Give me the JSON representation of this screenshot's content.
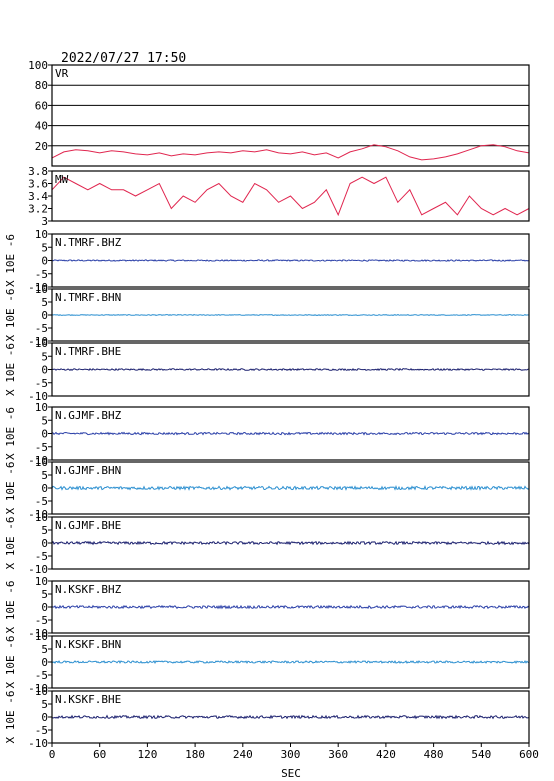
{
  "header": {
    "datetime": "2022/07/27 17:50"
  },
  "chart_data": {
    "type": "line",
    "xlabel": "SEC",
    "xlim": [
      0,
      600
    ],
    "xticks": [
      0,
      60,
      120,
      180,
      240,
      300,
      360,
      420,
      480,
      540,
      600
    ],
    "panels": [
      {
        "label": "VR",
        "ylim": [
          0,
          100
        ],
        "yticks": [
          20,
          40,
          60,
          80,
          100
        ],
        "grid": true,
        "color": "#e0264f",
        "series": {
          "x": [
            0,
            15,
            30,
            45,
            60,
            75,
            90,
            105,
            120,
            135,
            150,
            165,
            180,
            195,
            210,
            225,
            240,
            255,
            270,
            285,
            300,
            315,
            330,
            345,
            360,
            375,
            390,
            405,
            420,
            435,
            450,
            465,
            480,
            495,
            510,
            525,
            540,
            555,
            570,
            585,
            600
          ],
          "y": [
            8,
            14,
            16,
            15,
            13,
            15,
            14,
            12,
            11,
            13,
            10,
            12,
            11,
            13,
            14,
            13,
            15,
            14,
            16,
            13,
            12,
            14,
            11,
            13,
            8,
            14,
            17,
            21,
            19,
            15,
            9,
            6,
            7,
            9,
            12,
            16,
            20,
            21,
            19,
            15,
            13
          ]
        }
      },
      {
        "label": "MW",
        "ylim": [
          3.0,
          3.8
        ],
        "yticks": [
          3.0,
          3.2,
          3.4,
          3.6,
          3.8
        ],
        "grid": false,
        "color": "#e0264f",
        "series": {
          "x": [
            0,
            15,
            30,
            45,
            60,
            75,
            90,
            105,
            120,
            135,
            150,
            165,
            180,
            195,
            210,
            225,
            240,
            255,
            270,
            285,
            300,
            315,
            330,
            345,
            360,
            375,
            390,
            405,
            420,
            435,
            450,
            465,
            480,
            495,
            510,
            525,
            540,
            555,
            570,
            585,
            600
          ],
          "y": [
            3.5,
            3.7,
            3.6,
            3.5,
            3.6,
            3.5,
            3.5,
            3.4,
            3.5,
            3.6,
            3.2,
            3.4,
            3.3,
            3.5,
            3.6,
            3.4,
            3.3,
            3.6,
            3.5,
            3.3,
            3.4,
            3.2,
            3.3,
            3.5,
            3.1,
            3.6,
            3.7,
            3.6,
            3.7,
            3.3,
            3.5,
            3.1,
            3.2,
            3.3,
            3.1,
            3.4,
            3.2,
            3.1,
            3.2,
            3.1,
            3.2
          ]
        }
      },
      {
        "label": "N.TMRF.BHZ",
        "ylabel": "X 10E -6",
        "ylim": [
          -10,
          10
        ],
        "yticks": [
          -10,
          -5,
          0,
          5,
          10
        ],
        "color": "#2a3fa8",
        "baseline": 0,
        "noise": 0.25
      },
      {
        "label": "N.TMRF.BHN",
        "ylabel": "X 10E -6",
        "ylim": [
          -10,
          10
        ],
        "yticks": [
          -10,
          -5,
          0,
          5,
          10
        ],
        "color": "#2b8fd0",
        "baseline": 0,
        "noise": 0.15
      },
      {
        "label": "N.TMRF.BHE",
        "ylabel": "X 10E -6",
        "ylim": [
          -10,
          10
        ],
        "yticks": [
          -10,
          -5,
          0,
          5,
          10
        ],
        "color": "#1a1f6e",
        "baseline": 0,
        "noise": 0.3
      },
      {
        "label": "N.GJMF.BHZ",
        "ylabel": "X 10E -6",
        "ylim": [
          -10,
          10
        ],
        "yticks": [
          -10,
          -5,
          0,
          5,
          10
        ],
        "color": "#2a3fa8",
        "baseline": 0,
        "noise": 0.4
      },
      {
        "label": "N.GJMF.BHN",
        "ylabel": "X 10E -6",
        "ylim": [
          -10,
          10
        ],
        "yticks": [
          -10,
          -5,
          0,
          5,
          10
        ],
        "color": "#2b8fd0",
        "baseline": 0,
        "noise": 0.6
      },
      {
        "label": "N.GJMF.BHE",
        "ylabel": "X 10E -6",
        "ylim": [
          -10,
          10
        ],
        "yticks": [
          -10,
          -5,
          0,
          5,
          10
        ],
        "color": "#1a1f6e",
        "baseline": 0,
        "noise": 0.5
      },
      {
        "label": "N.KSKF.BHZ",
        "ylabel": "X 10E -6",
        "ylim": [
          -10,
          10
        ],
        "yticks": [
          -10,
          -5,
          0,
          5,
          10
        ],
        "color": "#2a3fa8",
        "baseline": 0,
        "noise": 0.5
      },
      {
        "label": "N.KSKF.BHN",
        "ylabel": "X 10E -6",
        "ylim": [
          -10,
          10
        ],
        "yticks": [
          -10,
          -5,
          0,
          5,
          10
        ],
        "color": "#2b8fd0",
        "baseline": 0,
        "noise": 0.4
      },
      {
        "label": "N.KSKF.BHE",
        "ylabel": "X 10E -6",
        "ylim": [
          -10,
          10
        ],
        "yticks": [
          -10,
          -5,
          0,
          5,
          10
        ],
        "color": "#1a1f6e",
        "baseline": 0,
        "noise": 0.5
      }
    ]
  }
}
